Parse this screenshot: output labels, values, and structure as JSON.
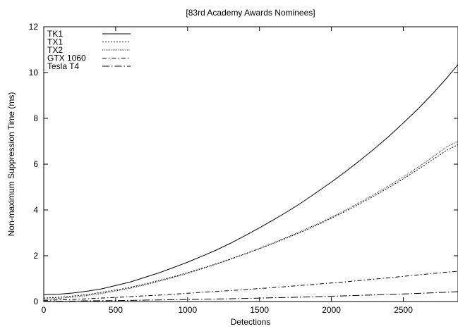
{
  "chart_data": {
    "type": "line",
    "title": "[83rd Academy Awards Nominees]",
    "xlabel": "Detections",
    "ylabel": "Non-maximum Suppression Time (ms)",
    "xlim": [
      0,
      2880
    ],
    "ylim": [
      0,
      12
    ],
    "xticks": [
      0,
      500,
      1000,
      1500,
      2000,
      2500
    ],
    "yticks": [
      0,
      2,
      4,
      6,
      8,
      10,
      12
    ],
    "x_tick_labels": [
      "0",
      "500",
      "1000",
      "1500",
      "2000",
      "2500"
    ],
    "y_tick_labels": [
      "0",
      "2",
      "4",
      "6",
      "8",
      "10",
      "12"
    ],
    "grid": false,
    "legend_position": "top-left",
    "colors": {
      "line": "#000000",
      "background": "#ffffff"
    },
    "x": [
      0,
      100,
      200,
      300,
      400,
      500,
      600,
      700,
      800,
      900,
      1000,
      1100,
      1200,
      1300,
      1400,
      1500,
      1600,
      1700,
      1800,
      1900,
      2000,
      2100,
      2200,
      2300,
      2400,
      2500,
      2600,
      2700,
      2800,
      2880
    ],
    "series": [
      {
        "name": "TK1",
        "dash": "solid",
        "values": [
          0.3,
          0.32,
          0.37,
          0.45,
          0.55,
          0.7,
          0.85,
          1.05,
          1.25,
          1.48,
          1.72,
          1.98,
          2.25,
          2.55,
          2.88,
          3.22,
          3.58,
          3.95,
          4.35,
          4.78,
          5.22,
          5.68,
          6.17,
          6.68,
          7.22,
          7.8,
          8.4,
          9.05,
          9.75,
          10.35
        ]
      },
      {
        "name": "TX1",
        "dash": "dotted",
        "values": [
          0.15,
          0.18,
          0.24,
          0.3,
          0.4,
          0.5,
          0.62,
          0.76,
          0.92,
          1.08,
          1.26,
          1.45,
          1.65,
          1.86,
          2.08,
          2.31,
          2.55,
          2.8,
          3.06,
          3.34,
          3.64,
          3.95,
          4.28,
          4.62,
          4.98,
          5.36,
          5.76,
          6.18,
          6.6,
          6.85
        ]
      },
      {
        "name": "TX2",
        "dash": "fine-dotted",
        "values": [
          0.1,
          0.13,
          0.19,
          0.26,
          0.35,
          0.46,
          0.58,
          0.72,
          0.88,
          1.05,
          1.23,
          1.43,
          1.63,
          1.85,
          2.08,
          2.32,
          2.57,
          2.83,
          3.1,
          3.38,
          3.68,
          4.0,
          4.34,
          4.69,
          5.06,
          5.45,
          5.86,
          6.3,
          6.75,
          7.0
        ]
      },
      {
        "name": "GTX  1060",
        "dash": "dash-dot",
        "values": [
          0.05,
          0.07,
          0.09,
          0.12,
          0.15,
          0.18,
          0.21,
          0.25,
          0.28,
          0.32,
          0.36,
          0.4,
          0.44,
          0.48,
          0.52,
          0.57,
          0.61,
          0.66,
          0.71,
          0.76,
          0.81,
          0.86,
          0.92,
          0.98,
          1.04,
          1.1,
          1.16,
          1.22,
          1.28,
          1.32
        ]
      },
      {
        "name": "Tesla T4",
        "dash": "long-dash-dot",
        "values": [
          0.01,
          0.015,
          0.02,
          0.03,
          0.035,
          0.04,
          0.05,
          0.06,
          0.07,
          0.08,
          0.09,
          0.1,
          0.11,
          0.12,
          0.135,
          0.15,
          0.165,
          0.18,
          0.195,
          0.21,
          0.23,
          0.25,
          0.27,
          0.29,
          0.31,
          0.33,
          0.355,
          0.38,
          0.405,
          0.43
        ]
      }
    ]
  }
}
